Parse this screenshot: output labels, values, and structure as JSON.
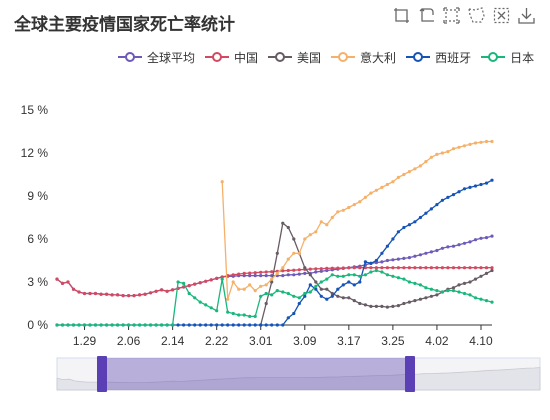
{
  "title": "全球主要疫情国家死亡率统计",
  "toolbox": [
    {
      "name": "zoom-icon"
    },
    {
      "name": "zoom-reset-icon"
    },
    {
      "name": "line-chart-icon"
    },
    {
      "name": "bar-chart-icon"
    },
    {
      "name": "restore-icon"
    },
    {
      "name": "download-icon"
    }
  ],
  "chart_data": {
    "type": "line",
    "x": [
      "1.24",
      "1.25",
      "1.26",
      "1.27",
      "1.28",
      "1.29",
      "1.30",
      "1.31",
      "2.01",
      "2.02",
      "2.03",
      "2.04",
      "2.05",
      "2.06",
      "2.07",
      "2.08",
      "2.09",
      "2.10",
      "2.11",
      "2.12",
      "2.13",
      "2.14",
      "2.15",
      "2.16",
      "2.17",
      "2.18",
      "2.19",
      "2.20",
      "2.21",
      "2.22",
      "2.23",
      "2.24",
      "2.25",
      "2.26",
      "2.27",
      "2.28",
      "2.29",
      "3.01",
      "3.02",
      "3.03",
      "3.04",
      "3.05",
      "3.06",
      "3.07",
      "3.08",
      "3.09",
      "3.10",
      "3.11",
      "3.12",
      "3.13",
      "3.14",
      "3.15",
      "3.16",
      "3.17",
      "3.18",
      "3.19",
      "3.20",
      "3.21",
      "3.22",
      "3.23",
      "3.24",
      "3.25",
      "3.26",
      "3.27",
      "3.28",
      "3.29",
      "3.30",
      "3.31",
      "4.01",
      "4.02",
      "4.03",
      "4.04",
      "4.05",
      "4.06",
      "4.07",
      "4.08",
      "4.09",
      "4.10",
      "4.11",
      "4.12"
    ],
    "x_tick_labels": [
      "1.29",
      "2.06",
      "2.14",
      "2.22",
      "3.01",
      "3.09",
      "3.17",
      "3.25",
      "4.02",
      "4.10"
    ],
    "ylabel_suffix": " %",
    "y_ticks": [
      0,
      3,
      6,
      9,
      12,
      15
    ],
    "ylim": [
      0,
      15
    ],
    "legend_position": "top-right",
    "series": [
      {
        "name": "全球平均",
        "color": "#6e5ab8",
        "values": [
          3.2,
          2.9,
          3.0,
          2.5,
          2.3,
          2.2,
          2.2,
          2.2,
          2.15,
          2.15,
          2.1,
          2.1,
          2.05,
          2.05,
          2.05,
          2.1,
          2.15,
          2.25,
          2.35,
          2.45,
          2.35,
          2.45,
          2.55,
          2.65,
          2.75,
          2.85,
          2.95,
          3.05,
          3.15,
          3.25,
          3.35,
          3.4,
          3.4,
          3.45,
          3.45,
          3.45,
          3.45,
          3.45,
          3.45,
          3.45,
          3.45,
          3.45,
          3.5,
          3.5,
          3.55,
          3.6,
          3.6,
          3.7,
          3.75,
          3.8,
          3.85,
          3.9,
          3.95,
          4.0,
          4.05,
          4.1,
          4.2,
          4.3,
          4.35,
          4.4,
          4.5,
          4.55,
          4.6,
          4.65,
          4.7,
          4.8,
          4.9,
          5.0,
          5.1,
          5.2,
          5.35,
          5.45,
          5.5,
          5.6,
          5.7,
          5.8,
          5.95,
          6.05,
          6.1,
          6.2
        ]
      },
      {
        "name": "中国",
        "color": "#d14a61",
        "values": [
          3.2,
          2.9,
          3.0,
          2.5,
          2.3,
          2.2,
          2.2,
          2.2,
          2.15,
          2.15,
          2.1,
          2.1,
          2.05,
          2.05,
          2.05,
          2.1,
          2.15,
          2.25,
          2.35,
          2.45,
          2.35,
          2.45,
          2.55,
          2.65,
          2.75,
          2.85,
          2.95,
          3.05,
          3.15,
          3.25,
          3.35,
          3.45,
          3.5,
          3.55,
          3.6,
          3.62,
          3.65,
          3.68,
          3.7,
          3.72,
          3.75,
          3.78,
          3.8,
          3.82,
          3.85,
          3.88,
          3.9,
          3.92,
          3.93,
          3.95,
          3.96,
          3.97,
          3.98,
          3.99,
          4.0,
          4.0,
          4.0,
          4.0,
          4.0,
          4.0,
          4.0,
          4.0,
          4.0,
          4.0,
          4.0,
          4.0,
          4.0,
          4.0,
          4.0,
          4.0,
          4.0,
          4.0,
          4.0,
          4.0,
          4.0,
          4.0,
          4.0,
          4.0,
          4.0,
          4.0
        ]
      },
      {
        "name": "美国",
        "color": "#675b64",
        "values": [
          null,
          null,
          null,
          null,
          null,
          null,
          null,
          null,
          null,
          null,
          null,
          null,
          null,
          null,
          null,
          null,
          null,
          null,
          null,
          null,
          null,
          null,
          null,
          null,
          null,
          null,
          null,
          null,
          null,
          null,
          null,
          null,
          null,
          null,
          null,
          null,
          null,
          0,
          1.5,
          3,
          5,
          7.1,
          6.8,
          6,
          5,
          4,
          3.5,
          3,
          2.5,
          2.5,
          2.2,
          2.0,
          1.9,
          1.9,
          1.7,
          1.5,
          1.4,
          1.3,
          1.3,
          1.3,
          1.25,
          1.3,
          1.35,
          1.5,
          1.6,
          1.7,
          1.8,
          1.9,
          2.0,
          2.1,
          2.3,
          2.5,
          2.6,
          2.8,
          2.9,
          3.0,
          3.2,
          3.4,
          3.6,
          3.8
        ]
      },
      {
        "name": "意大利",
        "color": "#f5b16a",
        "values": [
          null,
          null,
          null,
          null,
          null,
          null,
          null,
          null,
          null,
          null,
          null,
          null,
          null,
          null,
          null,
          null,
          null,
          null,
          null,
          null,
          null,
          null,
          null,
          null,
          null,
          null,
          null,
          null,
          null,
          null,
          10,
          1.8,
          3.0,
          2.5,
          2.5,
          2.8,
          2.4,
          2.7,
          2.8,
          3.2,
          3.6,
          4.0,
          4.6,
          5.0,
          5.0,
          6.0,
          6.3,
          6.5,
          7.2,
          7.0,
          7.5,
          7.9,
          8.0,
          8.2,
          8.4,
          8.6,
          8.9,
          9.2,
          9.4,
          9.6,
          9.8,
          10.0,
          10.3,
          10.5,
          10.7,
          10.9,
          11.1,
          11.4,
          11.7,
          11.9,
          12.0,
          12.1,
          12.3,
          12.4,
          12.5,
          12.6,
          12.7,
          12.75,
          12.8,
          12.8
        ]
      },
      {
        "name": "西班牙",
        "color": "#1553b6",
        "values": [
          0,
          0,
          0,
          0,
          0,
          0,
          0,
          0,
          0,
          0,
          0,
          0,
          0,
          0,
          0,
          0,
          0,
          0,
          0,
          0,
          0,
          0,
          0,
          0,
          0,
          0,
          0,
          0,
          0,
          0,
          0,
          0,
          0,
          0,
          0,
          0,
          0,
          0,
          0,
          0,
          0,
          0,
          0.5,
          0.8,
          1.5,
          2.0,
          2.8,
          2.5,
          2.0,
          1.8,
          2.0,
          2.5,
          2.8,
          3.0,
          2.8,
          3.0,
          4.4,
          4.3,
          4.5,
          5.0,
          5.5,
          6.0,
          6.5,
          6.8,
          7.0,
          7.2,
          7.5,
          7.8,
          8.1,
          8.4,
          8.7,
          8.9,
          9.1,
          9.3,
          9.5,
          9.6,
          9.7,
          9.8,
          9.9,
          10.1
        ]
      },
      {
        "name": "日本",
        "color": "#19b77b",
        "values": [
          0,
          0,
          0,
          0,
          0,
          0,
          0,
          0,
          0,
          0,
          0,
          0,
          0,
          0,
          0,
          0,
          0,
          0,
          0,
          0,
          0,
          0,
          3.0,
          2.9,
          2.2,
          1.9,
          1.6,
          1.4,
          1.2,
          1.0,
          3.2,
          0.9,
          0.8,
          0.7,
          0.7,
          0.6,
          0.6,
          2.0,
          2.2,
          2.1,
          2.4,
          2.3,
          2.2,
          2.0,
          1.9,
          2.2,
          2.3,
          2.7,
          3.0,
          3.2,
          3.5,
          3.4,
          3.4,
          3.5,
          3.5,
          3.4,
          3.5,
          3.7,
          3.8,
          3.7,
          3.5,
          3.4,
          3.3,
          3.2,
          3.0,
          2.9,
          2.8,
          2.6,
          2.5,
          2.4,
          2.3,
          2.4,
          2.4,
          2.3,
          2.2,
          2.1,
          1.9,
          1.8,
          1.7,
          1.6
        ]
      }
    ]
  }
}
